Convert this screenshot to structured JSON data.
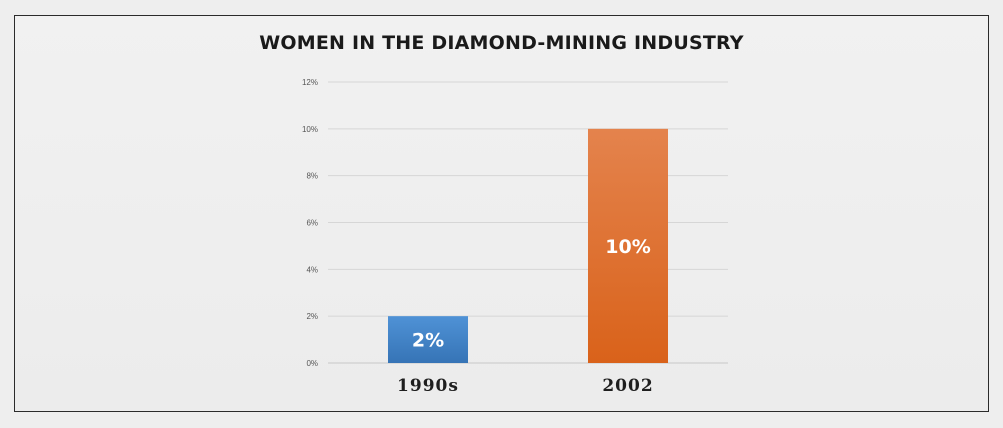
{
  "chart_data": {
    "type": "bar",
    "title": "WOMEN IN THE DIAMOND-MINING INDUSTRY",
    "categories": [
      "1990s",
      "2002"
    ],
    "values": [
      2,
      10
    ],
    "data_labels": [
      "2%",
      "10%"
    ],
    "ylim": [
      0,
      12
    ],
    "yticks": [
      "0%",
      "2%",
      "4%",
      "6%",
      "8%",
      "10%",
      "12%"
    ],
    "xlabel": "",
    "ylabel": "",
    "grid": true,
    "colors": [
      "#3a7dc4",
      "#e06a22"
    ]
  }
}
